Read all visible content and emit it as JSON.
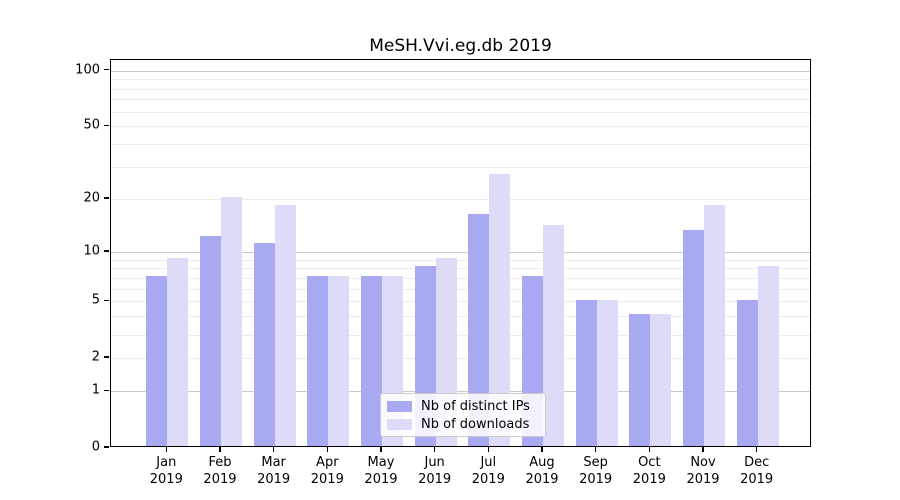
{
  "title": "MeSH.Vvi.eg.db 2019",
  "chart_data": {
    "type": "bar",
    "categories": [
      "Jan",
      "Feb",
      "Mar",
      "Apr",
      "May",
      "Jun",
      "Jul",
      "Aug",
      "Sep",
      "Oct",
      "Nov",
      "Dec"
    ],
    "x_year": "2019",
    "series": [
      {
        "name": "Nb of distinct IPs",
        "color": "#a9a9f2",
        "values": [
          7,
          12,
          11,
          7,
          7,
          8,
          16,
          7,
          5,
          4,
          13,
          5
        ]
      },
      {
        "name": "Nb of downloads",
        "color": "#dcdcf9",
        "values": [
          9,
          20,
          18,
          7,
          7,
          9,
          27,
          14,
          5,
          4,
          18,
          8
        ]
      }
    ],
    "yscale": "log1p",
    "ylim": [
      0,
      114
    ],
    "y_tick_labels": [
      "0",
      "1",
      "2",
      "5",
      "10",
      "20",
      "50",
      "100"
    ],
    "y_tick_values": [
      0,
      1,
      2,
      5,
      10,
      20,
      50,
      100
    ],
    "y_major_gridlines": [
      1,
      10,
      100
    ],
    "y_minor_gridlines": [
      2,
      3,
      4,
      5,
      6,
      7,
      8,
      9,
      20,
      30,
      40,
      50,
      60,
      70,
      80,
      90
    ],
    "grid": true,
    "legend_position": "lower center",
    "legend_entries": [
      "Nb of distinct IPs",
      "Nb of downloads"
    ]
  }
}
